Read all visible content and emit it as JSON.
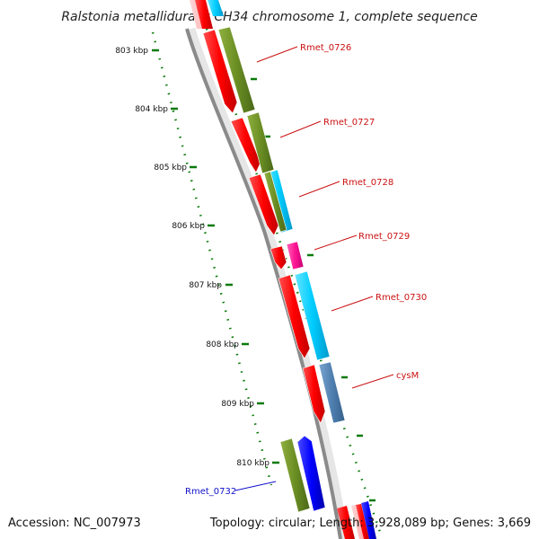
{
  "header": {
    "title": "Ralstonia metallidurans CH34 chromosome 1, complete sequence"
  },
  "footer": {
    "accession": "Accession: NC_007973",
    "stats": "Topology: circular; Length: 3,928,089 bp; Genes: 3,669"
  },
  "ruler": {
    "labels": [
      "803 kbp",
      "804 kbp",
      "805 kbp",
      "806 kbp",
      "807 kbp",
      "808 kbp",
      "809 kbp",
      "810 kbp"
    ]
  },
  "colors": {
    "backbone": "#8a8a8a",
    "ruler": "#0a7a0a",
    "forward_label": "#cc1111",
    "reverse_label": "#1111cc",
    "red": "#ff0000",
    "olive": "#6b8e23",
    "cyan": "#00ccff",
    "steel": "#4f7fb0",
    "magenta": "#ff1493",
    "blue": "#0000ff"
  },
  "genes": [
    {
      "name": "Rmet_0726",
      "strand": "forward",
      "label_color": "#cc1111"
    },
    {
      "name": "Rmet_0727",
      "strand": "forward",
      "label_color": "#cc1111"
    },
    {
      "name": "Rmet_0728",
      "strand": "forward",
      "label_color": "#cc1111"
    },
    {
      "name": "Rmet_0729",
      "strand": "forward",
      "label_color": "#cc1111"
    },
    {
      "name": "Rmet_0730",
      "strand": "forward",
      "label_color": "#cc1111"
    },
    {
      "name": "cysM",
      "strand": "forward",
      "label_color": "#cc1111"
    },
    {
      "name": "Rmet_0732",
      "strand": "reverse",
      "label_color": "#1111cc"
    }
  ]
}
